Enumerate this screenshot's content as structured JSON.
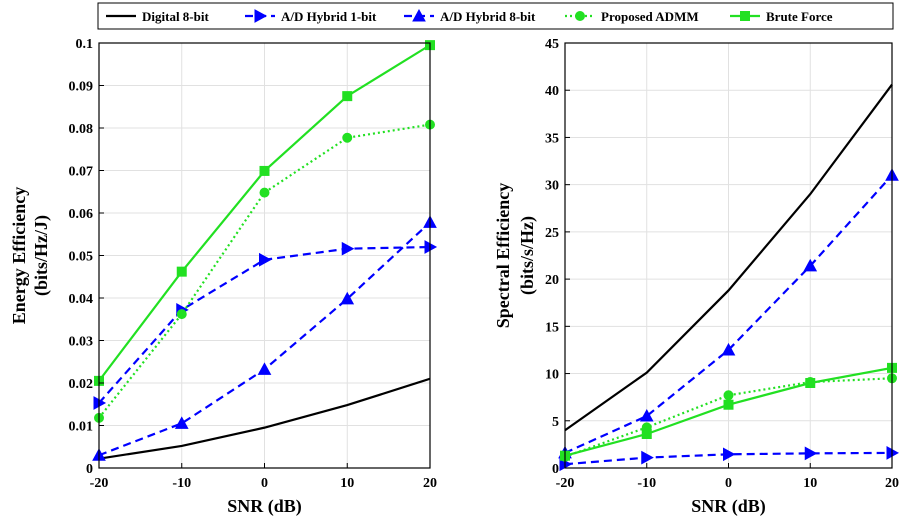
{
  "colors": {
    "black": "#000000",
    "blue": "#0000ff",
    "green": "#22e022"
  },
  "legend": {
    "placement": "top",
    "entries": [
      {
        "label": "Digital 8-bit",
        "color": "#000000",
        "style": "solid",
        "marker": "none"
      },
      {
        "label": "A/D Hybrid 1-bit",
        "color": "#0000ff",
        "style": "dashed",
        "marker": "triangle-right"
      },
      {
        "label": "A/D Hybrid 8-bit",
        "color": "#0000ff",
        "style": "dashed",
        "marker": "triangle-up"
      },
      {
        "label": "Proposed ADMM",
        "color": "#22e022",
        "style": "dotted",
        "marker": "circle"
      },
      {
        "label": "Brute Force",
        "color": "#22e022",
        "style": "solid",
        "marker": "square"
      }
    ]
  },
  "chart_data": [
    {
      "type": "line",
      "xlabel": "SNR (dB)",
      "ylabel": [
        "Energy Efficiency",
        "(bits/Hz/J)"
      ],
      "x": [
        -20,
        -10,
        0,
        10,
        20
      ],
      "xticks": [
        "-20",
        "-10",
        "0",
        "10",
        "20"
      ],
      "xlim": [
        -20,
        20
      ],
      "ylim": [
        0,
        0.1
      ],
      "yticks": [
        "0",
        "0.01",
        "0.02",
        "0.03",
        "0.04",
        "0.05",
        "0.06",
        "0.07",
        "0.08",
        "0.09",
        "0.1"
      ],
      "grid": true,
      "series": [
        {
          "name": "Digital 8-bit",
          "color": "#000000",
          "style": "solid",
          "marker": "none",
          "values": [
            0.0022,
            0.0052,
            0.0095,
            0.0148,
            0.021
          ]
        },
        {
          "name": "A/D Hybrid 1-bit",
          "color": "#0000ff",
          "style": "dashed",
          "marker": "triangle-right",
          "values": [
            0.0153,
            0.0372,
            0.049,
            0.0516,
            0.052
          ]
        },
        {
          "name": "A/D Hybrid 8-bit",
          "color": "#0000ff",
          "style": "dashed",
          "marker": "triangle-up",
          "values": [
            0.003,
            0.0105,
            0.0232,
            0.0398,
            0.0578
          ]
        },
        {
          "name": "Proposed ADMM",
          "color": "#22e022",
          "style": "dotted",
          "marker": "circle",
          "values": [
            0.0118,
            0.0362,
            0.0648,
            0.0777,
            0.0808
          ]
        },
        {
          "name": "Brute Force",
          "color": "#22e022",
          "style": "solid",
          "marker": "square",
          "values": [
            0.0205,
            0.0462,
            0.0699,
            0.0875,
            0.0995
          ]
        }
      ]
    },
    {
      "type": "line",
      "xlabel": "SNR (dB)",
      "ylabel": [
        "Spectral Efficiency",
        "(bits/s/Hz)"
      ],
      "x": [
        -20,
        -10,
        0,
        10,
        20
      ],
      "xticks": [
        "-20",
        "-10",
        "0",
        "10",
        "20"
      ],
      "xlim": [
        -20,
        20
      ],
      "ylim": [
        0,
        45
      ],
      "yticks": [
        "0",
        "5",
        "10",
        "15",
        "20",
        "25",
        "30",
        "35",
        "40",
        "45"
      ],
      "grid": true,
      "series": [
        {
          "name": "Digital 8-bit",
          "color": "#000000",
          "style": "solid",
          "marker": "none",
          "values": [
            4.0,
            10.1,
            18.8,
            29.0,
            40.6
          ]
        },
        {
          "name": "A/D Hybrid 1-bit",
          "color": "#0000ff",
          "style": "dashed",
          "marker": "triangle-right",
          "values": [
            0.4,
            1.1,
            1.45,
            1.55,
            1.6
          ]
        },
        {
          "name": "A/D Hybrid 8-bit",
          "color": "#0000ff",
          "style": "dashed",
          "marker": "triangle-up",
          "values": [
            1.6,
            5.5,
            12.5,
            21.4,
            31.0
          ]
        },
        {
          "name": "Proposed ADMM",
          "color": "#22e022",
          "style": "dotted",
          "marker": "circle",
          "values": [
            1.2,
            4.3,
            7.7,
            9.1,
            9.5
          ]
        },
        {
          "name": "Brute Force",
          "color": "#22e022",
          "style": "solid",
          "marker": "square",
          "values": [
            1.3,
            3.6,
            6.7,
            9.0,
            10.6
          ]
        }
      ]
    }
  ]
}
